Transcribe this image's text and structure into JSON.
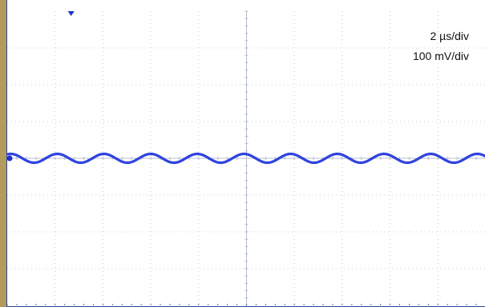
{
  "chart_data": {
    "type": "line",
    "title": "",
    "xlabel": "",
    "ylabel": "",
    "divisions": {
      "x": 10,
      "y": 8
    },
    "xlim": [
      0,
      20
    ],
    "ylim": [
      -400,
      400
    ],
    "x_unit": "µs",
    "y_unit": "mV",
    "grid": true,
    "scale_labels": {
      "time": "2 µs/div",
      "voltage": "100 mV/div"
    },
    "series": [
      {
        "waveform": "sine",
        "offset": 0,
        "amplitude": 12,
        "period": 1.95,
        "color": "#1f2fd1"
      }
    ],
    "markers": {
      "trigger": "top",
      "ground": "left"
    }
  }
}
